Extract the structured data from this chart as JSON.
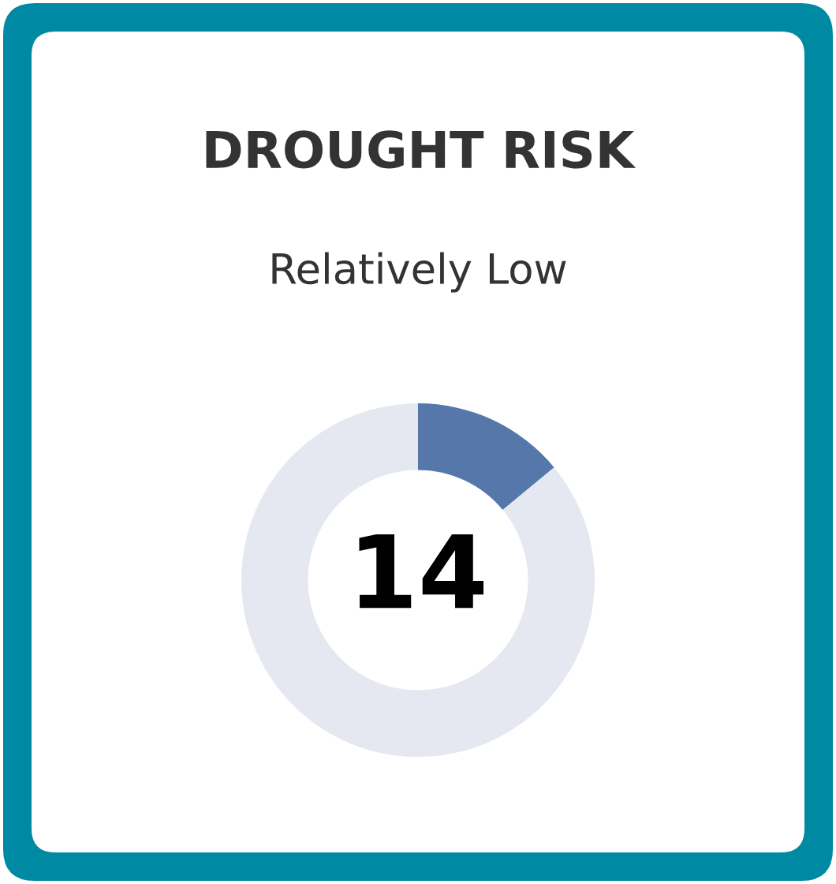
{
  "chart_data": {
    "type": "donut",
    "title": "DROUGHT RISK",
    "subtitle": "Relatively Low",
    "categories": [
      null,
      null
    ],
    "values": [
      14,
      86
    ],
    "colors": [
      "#5577aa",
      "#e6e8f1"
    ],
    "annotations": [
      "14"
    ],
    "legend": false
  }
}
